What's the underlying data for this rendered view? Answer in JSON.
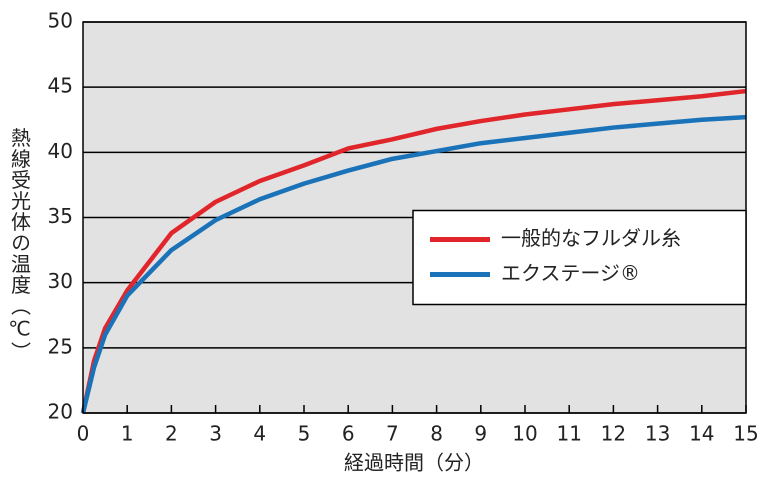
{
  "chart_data": {
    "type": "line",
    "x_label": "経過時間（分）",
    "y_label": "熱線受光体の温度（℃）",
    "x": [
      0,
      0.25,
      0.5,
      1,
      2,
      3,
      4,
      5,
      6,
      7,
      8,
      9,
      10,
      11,
      12,
      13,
      14,
      15
    ],
    "series": [
      {
        "name": "一般的なフルダル糸",
        "color": "#e0262b",
        "values": [
          20,
          24,
          26.5,
          29.4,
          33.8,
          36.2,
          37.8,
          39.0,
          40.3,
          41.0,
          41.8,
          42.4,
          42.9,
          43.3,
          43.7,
          44.0,
          44.3,
          44.7
        ]
      },
      {
        "name": "エクステージ®",
        "color": "#1a72b8",
        "values": [
          20,
          23.5,
          26,
          29.0,
          32.5,
          34.8,
          36.4,
          37.6,
          38.6,
          39.5,
          40.1,
          40.7,
          41.1,
          41.5,
          41.9,
          42.2,
          42.5,
          42.7
        ]
      }
    ],
    "xlim": [
      0,
      15
    ],
    "xticks": [
      0,
      1,
      2,
      3,
      4,
      5,
      6,
      7,
      8,
      9,
      10,
      11,
      12,
      13,
      14,
      15
    ],
    "ylim": [
      20,
      50
    ],
    "yticks": [
      20,
      25,
      30,
      35,
      40,
      45,
      50
    ],
    "grid": true,
    "legend": "center right"
  }
}
